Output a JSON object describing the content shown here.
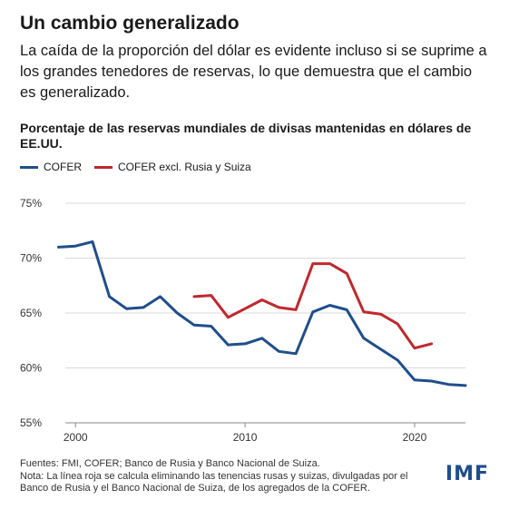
{
  "headline": "Un cambio generalizado",
  "subhead": "La caída de la proporción del dólar es evidente incluso si se suprime a los grandes tenedores de reservas, lo que demuestra que el cambio es generalizado.",
  "footer": {
    "sources": "Fuentes: FMI, COFER; Banco de Rusia y Banco Nacional de Suiza.",
    "note": "Nota: La línea roja se calcula eliminando las tenencias rusas y suizas, divulgadas por el Banco de Rusia y el Banco Nacional de Suiza, de los agregados de la COFER."
  },
  "logo": "IMF",
  "chart_data": {
    "type": "line",
    "title": "Porcentaje de las reservas mundiales de divisas mantenidas en dólares de EE.UU.",
    "xlabel": "",
    "ylabel": "",
    "xlim": [
      1999.4,
      2023
    ],
    "ylim": [
      55,
      75
    ],
    "yticks": [
      55,
      60,
      65,
      70,
      75
    ],
    "ytick_labels": [
      "55%",
      "60%",
      "65%",
      "70%",
      "75%"
    ],
    "xticks": [
      2000,
      2010,
      2020
    ],
    "xtick_labels": [
      "2000",
      "2010",
      "2020"
    ],
    "grid": "horizontal",
    "legend_position": "top-left",
    "series": [
      {
        "name": "COFER",
        "color": "#1f4e8c",
        "x": [
          1999,
          2000,
          2001,
          2002,
          2003,
          2004,
          2005,
          2006,
          2007,
          2008,
          2009,
          2010,
          2011,
          2012,
          2013,
          2014,
          2015,
          2016,
          2017,
          2018,
          2019,
          2020,
          2021,
          2022,
          2023
        ],
        "values": [
          71.0,
          71.1,
          71.5,
          66.5,
          65.4,
          65.5,
          66.5,
          65.0,
          63.9,
          63.8,
          62.1,
          62.2,
          62.7,
          61.5,
          61.3,
          65.1,
          65.7,
          65.3,
          62.7,
          61.7,
          60.7,
          58.9,
          58.8,
          58.5,
          58.4
        ]
      },
      {
        "name": "COFER excl. Rusia y Suiza",
        "color": "#c0282d",
        "x": [
          2007,
          2008,
          2009,
          2010,
          2011,
          2012,
          2013,
          2014,
          2015,
          2016,
          2017,
          2018,
          2019,
          2020,
          2021
        ],
        "values": [
          66.5,
          66.6,
          64.6,
          65.4,
          66.2,
          65.5,
          65.3,
          69.5,
          69.5,
          68.6,
          65.1,
          64.9,
          64.0,
          61.8,
          62.2
        ]
      }
    ]
  }
}
